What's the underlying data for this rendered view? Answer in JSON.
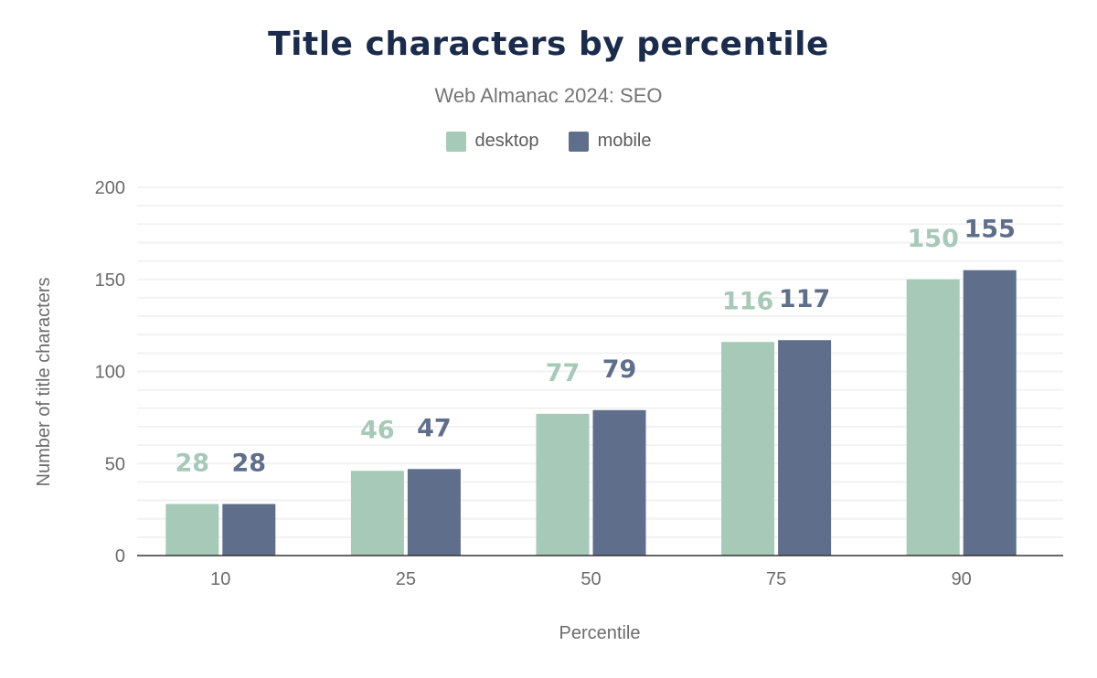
{
  "chart_data": {
    "type": "bar",
    "title": "Title characters by percentile",
    "subtitle": "Web Almanac 2024: SEO",
    "xlabel": "Percentile",
    "ylabel": "Number of title characters",
    "categories": [
      "10",
      "25",
      "50",
      "75",
      "90"
    ],
    "series": [
      {
        "name": "desktop",
        "values": [
          28,
          46,
          77,
          116,
          150
        ],
        "color": "#a6c9b8"
      },
      {
        "name": "mobile",
        "values": [
          28,
          47,
          79,
          117,
          155
        ],
        "color": "#5f6e8a"
      }
    ],
    "ylim": [
      0,
      200
    ],
    "yticks": [
      0,
      50,
      100,
      150,
      200
    ],
    "grid": true,
    "legend": "top-center",
    "data_labels": true
  }
}
